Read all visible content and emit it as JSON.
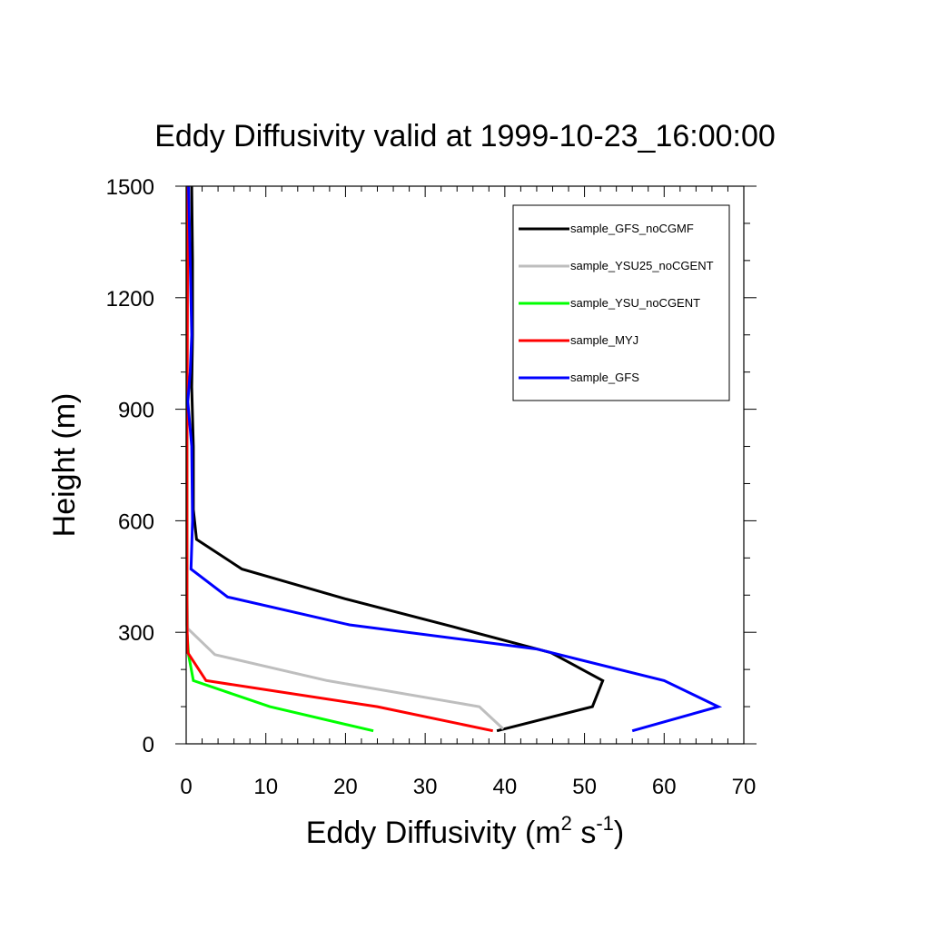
{
  "chart_data": {
    "type": "line",
    "title": "Eddy Diffusivity valid at 1999-10-23_16:00:00",
    "xlabel": {
      "main": "Eddy Diffusivity (m",
      "sup1": "2",
      "mid": " s",
      "sup2": "-1",
      "end": ")"
    },
    "ylabel": "Height (m)",
    "xlim": [
      0,
      70
    ],
    "ylim": [
      0,
      1500
    ],
    "xticks": [
      0,
      10,
      20,
      30,
      40,
      50,
      60,
      70
    ],
    "yticks": [
      0,
      300,
      600,
      900,
      1200,
      1500
    ],
    "xtick_labels": [
      "0",
      "10",
      "20",
      "30",
      "40",
      "50",
      "60",
      "70"
    ],
    "ytick_labels": [
      "0",
      "300",
      "600",
      "900",
      "1200",
      "1500"
    ],
    "grid": false,
    "legend_position": "top-right",
    "series": [
      {
        "name": "sample_GFS_noCGMF",
        "color": "#000000",
        "points": [
          [
            39,
            35
          ],
          [
            51,
            100
          ],
          [
            52.3,
            170
          ],
          [
            45.8,
            245
          ],
          [
            33.5,
            315
          ],
          [
            20,
            390
          ],
          [
            7,
            470
          ],
          [
            1.3,
            550
          ],
          [
            0.9,
            630
          ],
          [
            0.9,
            800
          ],
          [
            0.7,
            960
          ],
          [
            0.8,
            1100
          ],
          [
            0.8,
            1300
          ],
          [
            0.7,
            1500
          ]
        ]
      },
      {
        "name": "sample_YSU25_noCGENT",
        "color": "#bebebe",
        "points": [
          [
            39.8,
            40
          ],
          [
            36.8,
            100
          ],
          [
            17.7,
            170
          ],
          [
            3.6,
            240
          ],
          [
            0.2,
            310
          ],
          [
            0.1,
            400
          ],
          [
            0.1,
            800
          ],
          [
            0.1,
            1500
          ]
        ]
      },
      {
        "name": "sample_YSU_noCGENT",
        "color": "#00ff00",
        "points": [
          [
            23.5,
            35
          ],
          [
            10.5,
            100
          ],
          [
            0.9,
            170
          ],
          [
            0.3,
            240
          ],
          [
            0.1,
            300
          ],
          [
            0.1,
            800
          ],
          [
            0.1,
            1500
          ]
        ]
      },
      {
        "name": "sample_MYJ",
        "color": "#ff0000",
        "points": [
          [
            38.5,
            35
          ],
          [
            24,
            100
          ],
          [
            2.5,
            170
          ],
          [
            0.2,
            245
          ],
          [
            0.1,
            320
          ],
          [
            0.1,
            800
          ],
          [
            0.2,
            1500
          ]
        ]
      },
      {
        "name": "sample_GFS",
        "color": "#0000ff",
        "points": [
          [
            56,
            35
          ],
          [
            66.8,
            100
          ],
          [
            60,
            170
          ],
          [
            44,
            255
          ],
          [
            20.5,
            320
          ],
          [
            5.2,
            395
          ],
          [
            0.6,
            470
          ],
          [
            0.8,
            600
          ],
          [
            0.7,
            800
          ],
          [
            0.2,
            920
          ],
          [
            0.5,
            1000
          ],
          [
            0.7,
            1100
          ],
          [
            0.5,
            1300
          ],
          [
            0.3,
            1500
          ]
        ]
      }
    ]
  }
}
